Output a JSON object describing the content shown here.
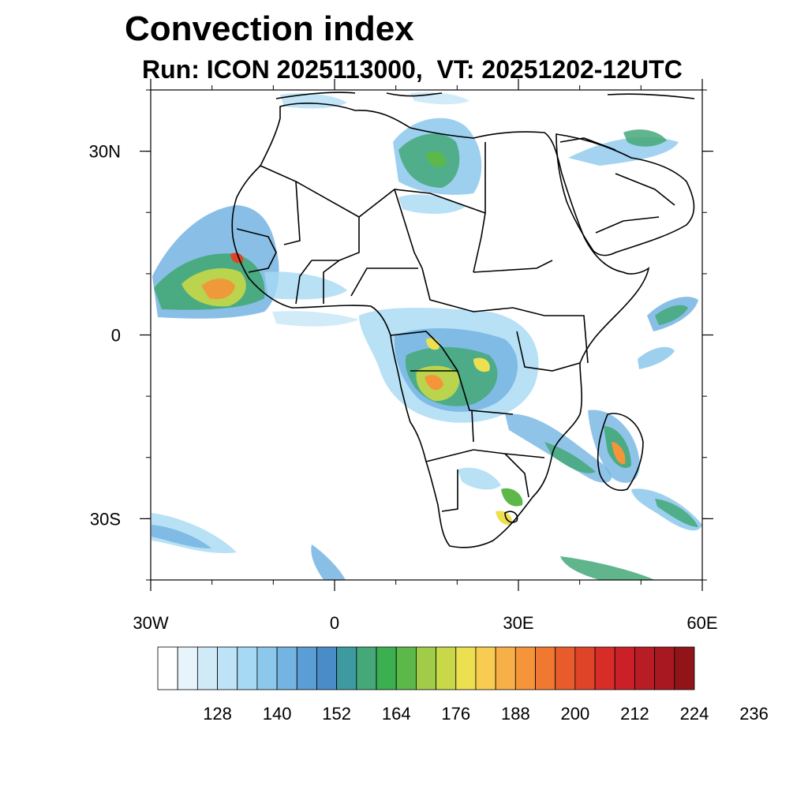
{
  "map": {
    "title": "Convection index",
    "subtitle": "Run: ICON 2025113000,  VT: 20251202-12UTC",
    "extent": {
      "lon_min": -30,
      "lon_max": 60,
      "lat_min": -40,
      "lat_max": 40
    },
    "x_ticks": [
      {
        "lon": -30,
        "label": "30W"
      },
      {
        "lon": 0,
        "label": "0"
      },
      {
        "lon": 30,
        "label": "30E"
      },
      {
        "lon": 60,
        "label": "60E"
      }
    ],
    "y_ticks": [
      {
        "lat": 30,
        "label": "30N"
      },
      {
        "lat": 0,
        "label": "0"
      },
      {
        "lat": -30,
        "label": "30S"
      }
    ]
  },
  "colorbar": {
    "colors": [
      "#ffffff",
      "#e8f4fc",
      "#d0eaf8",
      "#bfe3f6",
      "#a6d9f4",
      "#8cc8ec",
      "#74b4e2",
      "#5b9ed6",
      "#4a8cc8",
      "#3d9aa0",
      "#44a878",
      "#3caf50",
      "#5cb848",
      "#a0cc48",
      "#c8d848",
      "#ede050",
      "#f8cc50",
      "#f7b048",
      "#f59438",
      "#f07830",
      "#e85c2c",
      "#e04428",
      "#d82c28",
      "#cc2028",
      "#b81c24",
      "#a81820",
      "#901418"
    ],
    "labels": [
      "128",
      "140",
      "152",
      "164",
      "176",
      "188",
      "200",
      "212",
      "224",
      "236"
    ]
  }
}
